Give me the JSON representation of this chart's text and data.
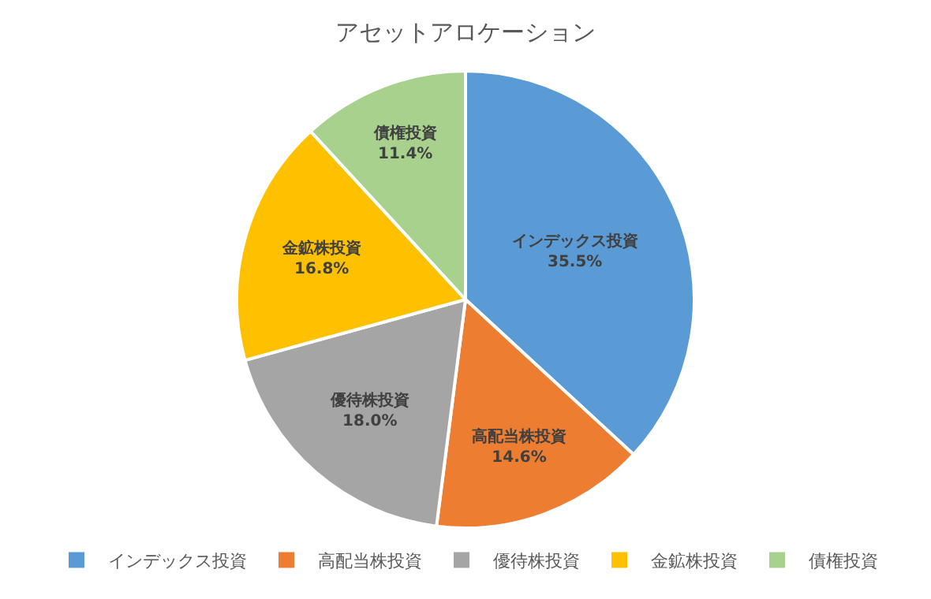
{
  "chart_data": {
    "type": "pie",
    "title": "アセットアロケーション",
    "categories": [
      "インデックス投資",
      "高配当株投資",
      "優待株投資",
      "金鉱株投資",
      "債権投資"
    ],
    "values": [
      35.5,
      14.6,
      18.0,
      16.8,
      11.4
    ],
    "value_labels": [
      "35.5%",
      "14.6%",
      "18.0%",
      "16.8%",
      "11.4%"
    ],
    "colors": [
      "#5b9bd5",
      "#ed7d31",
      "#a5a5a5",
      "#ffc000",
      "#a9d18e"
    ],
    "legend": "bottom"
  }
}
